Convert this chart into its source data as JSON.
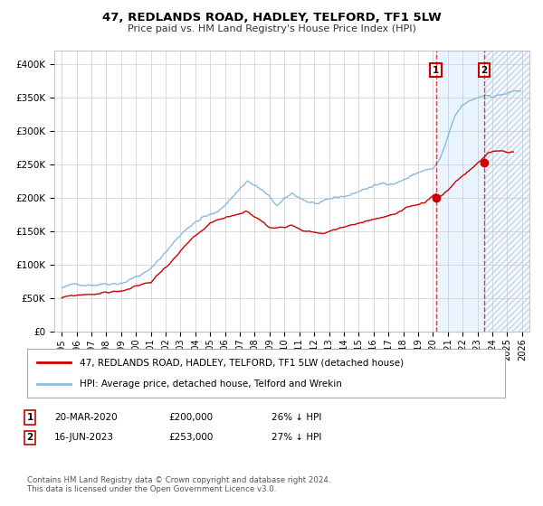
{
  "title": "47, REDLANDS ROAD, HADLEY, TELFORD, TF1 5LW",
  "subtitle": "Price paid vs. HM Land Registry's House Price Index (HPI)",
  "legend_label_red": "47, REDLANDS ROAD, HADLEY, TELFORD, TF1 5LW (detached house)",
  "legend_label_blue": "HPI: Average price, detached house, Telford and Wrekin",
  "annotation1_date": "20-MAR-2020",
  "annotation1_price": "£200,000",
  "annotation1_hpi": "26% ↓ HPI",
  "annotation1_year": 2020.2,
  "annotation1_value": 200000,
  "annotation2_date": "16-JUN-2023",
  "annotation2_price": "£253,000",
  "annotation2_hpi": "27% ↓ HPI",
  "annotation2_year": 2023.46,
  "annotation2_value": 253000,
  "footer": "Contains HM Land Registry data © Crown copyright and database right 2024.\nThis data is licensed under the Open Government Licence v3.0.",
  "ylim": [
    0,
    420000
  ],
  "xlim_start": 1994.5,
  "xlim_end": 2026.5,
  "background_color": "#ffffff",
  "grid_color": "#cccccc",
  "red_color": "#cc0000",
  "blue_color": "#88bbdd",
  "shade_color": "#ddeeff",
  "vline_color": "#cc0000",
  "hatch_color": "#bbccdd"
}
